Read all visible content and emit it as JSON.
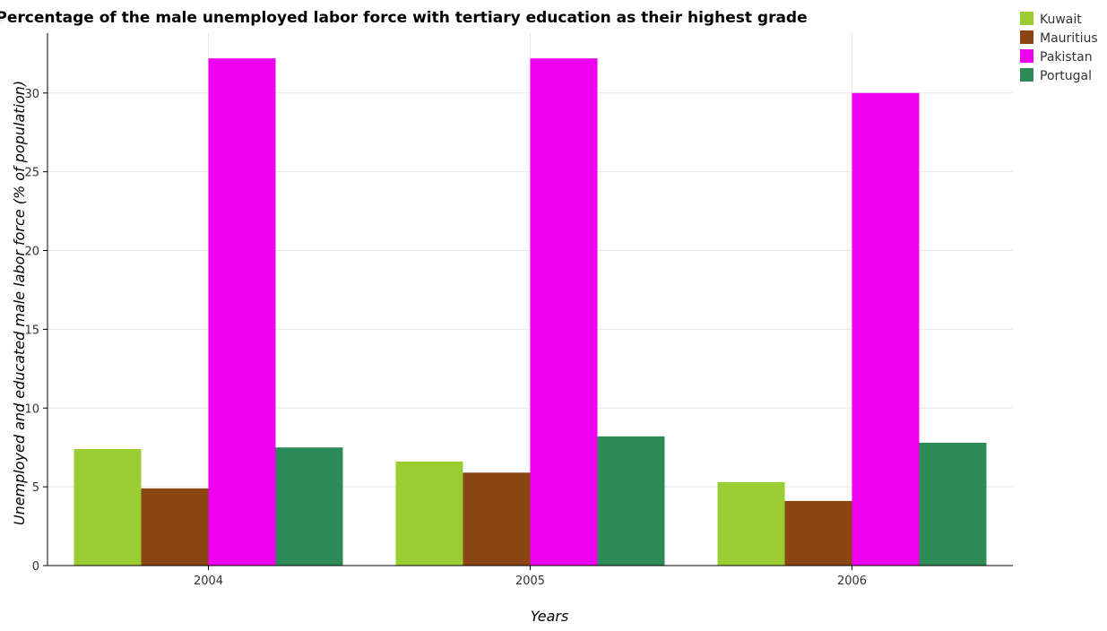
{
  "chart_data": {
    "type": "bar",
    "title": "Percentage of the male unemployed labor force with tertiary education as their highest grade",
    "xlabel": "Years",
    "ylabel": "Unemployed and educated male labor force (% of population)",
    "categories": [
      "2004",
      "2005",
      "2006"
    ],
    "series": [
      {
        "name": "Kuwait",
        "color": "#9acd32",
        "values": [
          7.4,
          6.6,
          5.3
        ]
      },
      {
        "name": "Mauritius",
        "color": "#8b4513",
        "values": [
          4.9,
          5.9,
          4.1
        ]
      },
      {
        "name": "Pakistan",
        "color": "#ee00ee",
        "values": [
          32.2,
          32.2,
          30.0
        ]
      },
      {
        "name": "Portugal",
        "color": "#2e8b57",
        "values": [
          7.5,
          8.2,
          7.8
        ]
      }
    ],
    "ylim": [
      0,
      33.8
    ],
    "yticks": [
      0,
      5,
      10,
      15,
      20,
      25,
      30
    ],
    "grid": true,
    "legend_position": "top-right"
  }
}
